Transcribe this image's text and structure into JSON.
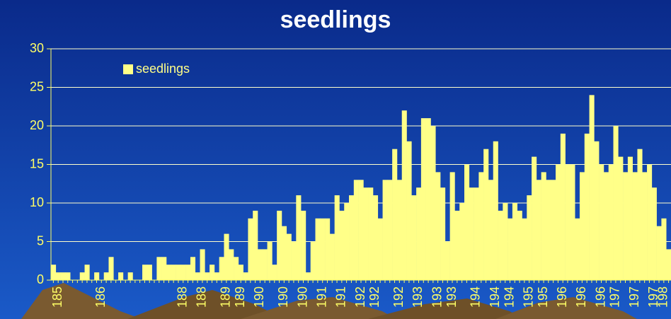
{
  "chart_data": {
    "type": "bar",
    "title": "seedlings",
    "series": [
      {
        "name": "seedlings",
        "color": "#ffff88",
        "values": [
          2,
          1,
          1,
          1,
          0,
          0,
          1,
          2,
          0,
          1,
          0,
          1,
          3,
          0,
          1,
          0,
          1,
          0,
          0,
          2,
          2,
          0,
          3,
          3,
          2,
          2,
          2,
          2,
          2,
          3,
          1,
          4,
          1,
          2,
          1,
          3,
          6,
          4,
          3,
          2,
          1,
          8,
          9,
          4,
          4,
          5,
          2,
          9,
          7,
          6,
          5,
          11,
          9,
          1,
          5,
          8,
          8,
          8,
          6,
          11,
          9,
          10,
          11,
          13,
          13,
          12,
          12,
          11,
          8,
          13,
          13,
          17,
          13,
          22,
          18,
          11,
          12,
          21,
          21,
          20,
          14,
          12,
          5,
          14,
          9,
          10,
          15,
          12,
          12,
          14,
          17,
          13,
          18,
          9,
          10,
          8,
          10,
          9,
          8,
          11,
          16,
          13,
          14,
          13,
          13,
          15,
          19,
          15,
          15,
          8,
          14,
          19,
          24,
          18,
          15,
          14,
          15,
          20,
          16,
          14,
          16,
          14,
          17,
          14,
          15,
          12,
          7,
          8,
          4
        ]
      }
    ],
    "categories": [
      null,
      "185",
      null,
      null,
      null,
      null,
      null,
      null,
      null,
      null,
      "186",
      null,
      null,
      null,
      null,
      null,
      null,
      null,
      null,
      null,
      null,
      null,
      null,
      null,
      null,
      null,
      null,
      "188",
      null,
      null,
      null,
      "188",
      null,
      null,
      null,
      null,
      "189",
      null,
      null,
      "189",
      null,
      null,
      null,
      "190",
      null,
      null,
      null,
      null,
      "190",
      null,
      null,
      null,
      "190",
      null,
      null,
      null,
      "191",
      null,
      null,
      null,
      "191",
      null,
      null,
      null,
      "192",
      null,
      null,
      "192",
      null,
      null,
      null,
      null,
      "192",
      null,
      null,
      null,
      "193",
      null,
      null,
      null,
      "193",
      null,
      null,
      "193",
      null,
      null,
      null,
      null,
      "194",
      null,
      null,
      null,
      "194",
      null,
      null,
      "194",
      null,
      null,
      null,
      "195",
      null,
      null,
      "195",
      null,
      null,
      null,
      "196",
      null,
      null,
      null,
      "196",
      null,
      null,
      null,
      "196",
      null,
      null,
      "197",
      null,
      null,
      null,
      "197",
      null,
      null,
      null,
      "197",
      null,
      "198",
      null
    ],
    "ylim": [
      0,
      30
    ],
    "yticks": [
      0,
      5,
      10,
      15,
      20,
      25,
      30
    ],
    "grid": true,
    "legend": "top-left"
  }
}
